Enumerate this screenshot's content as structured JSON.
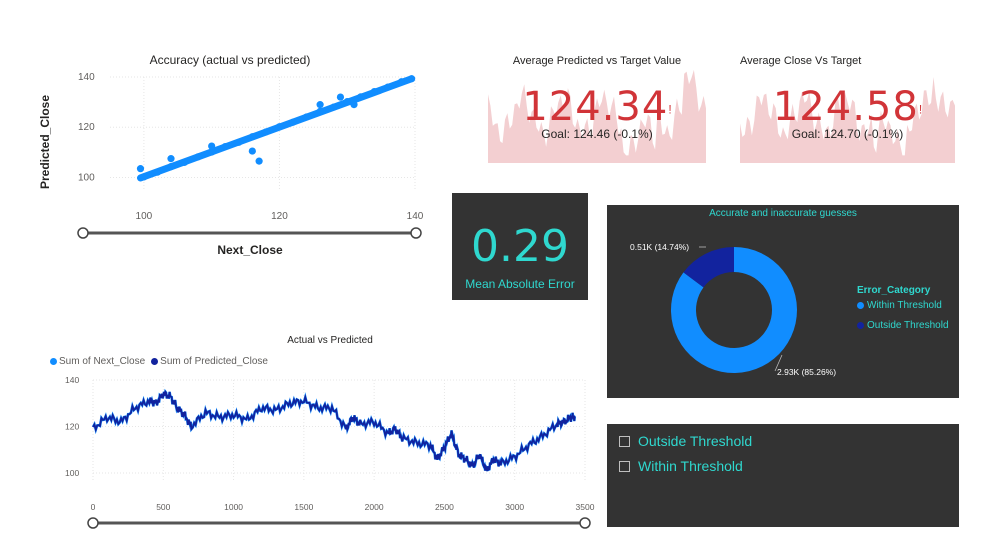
{
  "scatter": {
    "title": "Accuracy (actual vs predicted)",
    "ylabel": "Predicted_Close",
    "xlabel": "Next_Close",
    "x_ticks": [
      "100",
      "120",
      "140"
    ],
    "y_ticks": [
      "100",
      "120",
      "140"
    ],
    "color": "#118dff"
  },
  "kpi1": {
    "title": "Average Predicted vs Target Value",
    "value": "124.34",
    "goal": "Goal: 124.46 (-0.1%)",
    "mark": "!"
  },
  "kpi2": {
    "title": "Average Close Vs Target",
    "value": "124.58",
    "goal": "Goal: 124.70 (-0.1%)",
    "mark": "!"
  },
  "mae": {
    "value": "0.29",
    "label": "Mean Absolute Error",
    "color": "#2fd8cf"
  },
  "donut": {
    "title": "Accurate and inaccurate guesses",
    "legend_title": "Error_Category",
    "colors": {
      "within": "#118dff",
      "outside": "#12239e"
    }
  },
  "slicer": {
    "items": [
      "Outside Threshold",
      "Within Threshold"
    ]
  },
  "line": {
    "title": "Actual vs Predicted",
    "x_ticks": [
      "0",
      "500",
      "1000",
      "1500",
      "2000",
      "2500",
      "3000",
      "3500"
    ],
    "y_ticks": [
      "100",
      "120",
      "140"
    ]
  },
  "chart_data": [
    {
      "type": "scatter",
      "title": "Accuracy (actual vs predicted)",
      "xlabel": "Next_Close",
      "ylabel": "Predicted_Close",
      "xlim": [
        95,
        140
      ],
      "ylim": [
        95,
        140
      ],
      "x": [
        100,
        102,
        104,
        106,
        108,
        110,
        112,
        114,
        116,
        118,
        120,
        122,
        124,
        126,
        128,
        130,
        132,
        134,
        136,
        138,
        139.5,
        99.5,
        104,
        110,
        116,
        126,
        129,
        131,
        117
      ],
      "y": [
        100.2,
        102.1,
        104.3,
        106.0,
        108.2,
        110.1,
        112.3,
        114.0,
        116.2,
        118.1,
        120.2,
        122.0,
        124.1,
        126.3,
        128.0,
        130.2,
        132.1,
        134.2,
        136.0,
        138.1,
        139.3,
        103.5,
        107.5,
        112.5,
        110.5,
        129,
        132,
        129,
        106.5
      ]
    },
    {
      "type": "pie",
      "title": "Accurate and inaccurate guesses",
      "legend_title": "Error_Category",
      "categories": [
        "Within Threshold",
        "Outside Threshold"
      ],
      "values": [
        2930,
        510
      ],
      "labels": [
        "2.93K (85.26%)",
        "0.51K (14.74%)"
      ]
    },
    {
      "type": "line",
      "title": "Actual vs Predicted",
      "xlim": [
        0,
        3500
      ],
      "ylim": [
        97,
        140
      ],
      "x": [
        0,
        100,
        200,
        300,
        400,
        450,
        500,
        550,
        600,
        650,
        700,
        800,
        900,
        1000,
        1100,
        1200,
        1300,
        1400,
        1500,
        1600,
        1700,
        1800,
        1850,
        1900,
        2000,
        2100,
        2150,
        2200,
        2300,
        2400,
        2450,
        2500,
        2550,
        2600,
        2650,
        2700,
        2750,
        2800,
        2850,
        2900,
        3000,
        3100,
        3200,
        3300,
        3350,
        3400,
        3430
      ],
      "series": [
        {
          "name": "Sum of Next_Close",
          "color": "#118dff",
          "values": [
            119,
            124,
            122,
            128,
            131,
            130,
            134,
            133,
            128,
            125,
            120,
            126,
            124,
            125,
            123,
            128,
            127,
            130,
            131,
            128,
            128,
            119,
            124,
            121,
            122,
            117,
            119,
            115,
            113,
            112,
            106,
            111,
            117,
            108,
            106,
            103,
            108,
            101,
            106,
            104,
            107,
            112,
            116,
            121,
            122,
            124,
            124
          ]
        },
        {
          "name": "Sum of Predicted_Close",
          "color": "#12239e",
          "values": [
            119,
            124,
            122,
            128,
            131,
            130,
            134,
            133,
            128,
            125,
            120,
            126,
            124,
            125,
            123,
            128,
            127,
            130,
            131,
            128,
            128,
            119,
            124,
            121,
            122,
            117,
            119,
            115,
            113,
            112,
            106,
            111,
            117,
            108,
            106,
            103,
            108,
            101,
            106,
            104,
            107,
            112,
            116,
            121,
            122,
            124,
            124
          ]
        }
      ]
    }
  ]
}
